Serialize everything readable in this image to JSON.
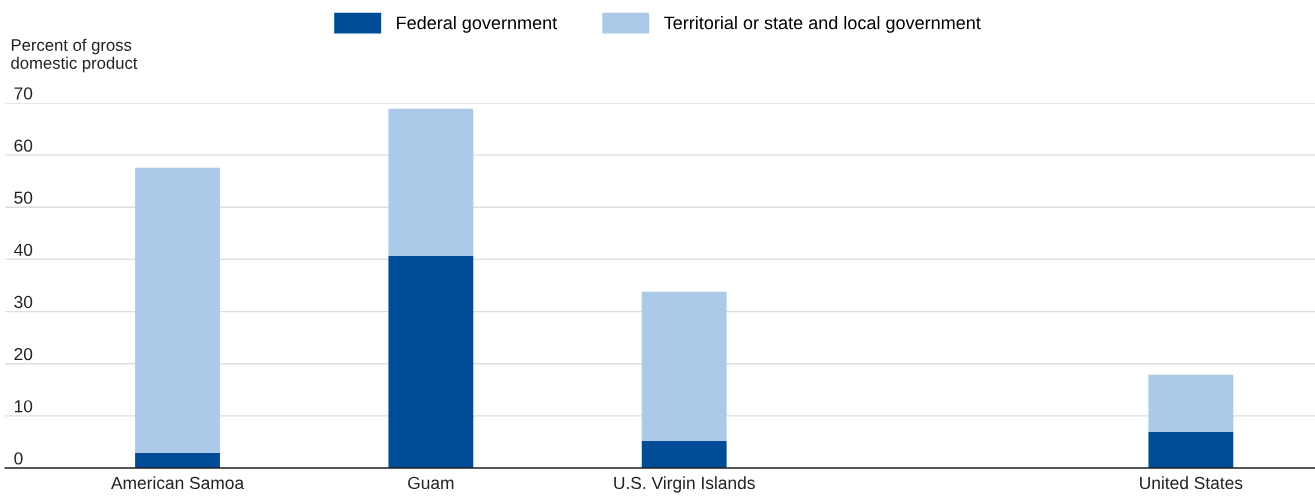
{
  "chart_data": {
    "type": "bar",
    "stacked": true,
    "ylabel": "Percent of gross\ndomestic product",
    "categories": [
      "American Samoa",
      "Guam",
      "U.S. Virgin Islands",
      null,
      "United States"
    ],
    "series": [
      {
        "name": "Federal government",
        "color": "#004c97",
        "values": [
          2.9,
          40.7,
          5.2,
          null,
          6.9
        ]
      },
      {
        "name": "Territorial or state and local government",
        "color": "#abc9e8",
        "values": [
          54.7,
          28.2,
          28.6,
          null,
          11.0
        ]
      }
    ],
    "ylim": [
      0,
      70
    ],
    "yticks": [
      0,
      10,
      20,
      30,
      40,
      50,
      60,
      70
    ],
    "grid": "y",
    "legend": "top"
  }
}
